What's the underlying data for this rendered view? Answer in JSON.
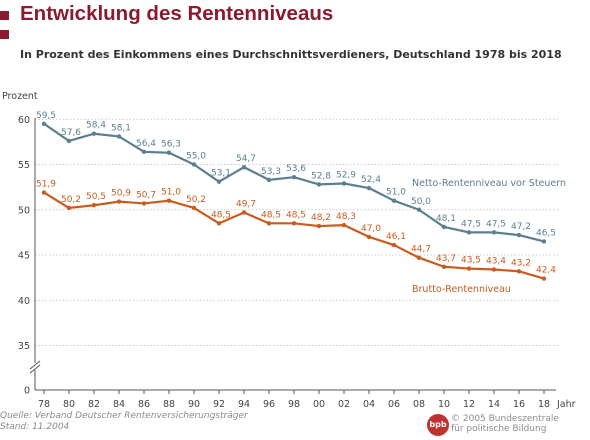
{
  "header": {
    "title": "Entwicklung des Rentenniveaus",
    "subtitle": "In Prozent des Einkommens eines Durchschnittsverdieners, Deutschland 1978 bis 2018"
  },
  "chart_data": {
    "type": "line",
    "x": [
      1978,
      1980,
      1982,
      1984,
      1986,
      1988,
      1990,
      1992,
      1994,
      1996,
      1998,
      2000,
      2002,
      2004,
      2006,
      2008,
      2010,
      2012,
      2014,
      2016,
      2018
    ],
    "xticklabels": [
      "78",
      "80",
      "82",
      "84",
      "86",
      "88",
      "90",
      "92",
      "94",
      "96",
      "98",
      "00",
      "02",
      "04",
      "06",
      "08",
      "10",
      "12",
      "14",
      "16",
      "18"
    ],
    "xlabel": "Jahr",
    "ylabel": "Prozent",
    "yticks": [
      0,
      35,
      40,
      45,
      50,
      55,
      60
    ],
    "ylim": [
      0,
      60
    ],
    "axis_break": true,
    "grid": true,
    "series": [
      {
        "name": "Netto-Rentenniveau vor Steuern",
        "color": "#5b7f8f",
        "values": [
          59.5,
          57.6,
          58.4,
          58.1,
          56.4,
          56.3,
          55.0,
          53.1,
          54.7,
          53.3,
          53.6,
          52.8,
          52.9,
          52.4,
          51.0,
          50.0,
          48.1,
          47.5,
          47.5,
          47.2,
          46.5
        ],
        "labels": [
          "59,5",
          "57,6",
          "58,4",
          "58,1",
          "56,4",
          "56,3",
          "55,0",
          "53,1",
          "54,7",
          "53,3",
          "53,6",
          "52,8",
          "52,9",
          "52,4",
          "51,0",
          "50,0",
          "48,1",
          "47,5",
          "47,5",
          "47,2",
          "46,5"
        ]
      },
      {
        "name": "Brutto-Rentenniveau",
        "color": "#c95b1e",
        "values": [
          51.9,
          50.2,
          50.5,
          50.9,
          50.7,
          51.0,
          50.2,
          48.5,
          49.7,
          48.5,
          48.5,
          48.2,
          48.3,
          47.0,
          46.1,
          44.7,
          43.7,
          43.5,
          43.4,
          43.2,
          42.4
        ],
        "labels": [
          "51,9",
          "50,2",
          "50,5",
          "50,9",
          "50,7",
          "51,0",
          "50,2",
          "48,5",
          "49,7",
          "48,5",
          "48,5",
          "48,2",
          "48,3",
          "47,0",
          "46,1",
          "44,7",
          "43,7",
          "43,5",
          "43,4",
          "43,2",
          "42,4"
        ]
      }
    ]
  },
  "footer": {
    "source": "Quelle: Verband Deutscher Rentenversicherungsträger",
    "date": "Stand: 11.2004"
  },
  "credit": {
    "logo": "bpb",
    "line1": "© 2005 Bundeszentrale",
    "line2": "für politische Bildung"
  }
}
